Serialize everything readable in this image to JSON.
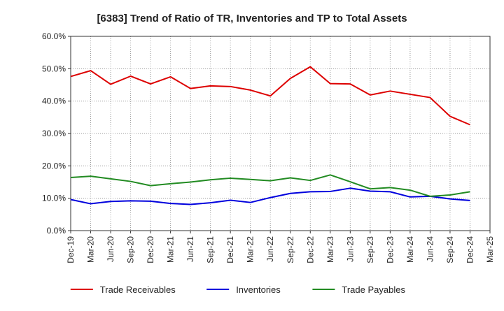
{
  "chart_data": {
    "type": "line",
    "title": "[6383]  Trend of Ratio of TR, Inventories and TP to Total Assets",
    "xlabel": "",
    "ylabel": "",
    "ylim": [
      0,
      0.6
    ],
    "y_ticks": [
      0,
      0.1,
      0.2,
      0.3,
      0.4,
      0.5,
      0.6
    ],
    "y_tick_labels": [
      "0.0%",
      "10.0%",
      "20.0%",
      "30.0%",
      "40.0%",
      "50.0%",
      "60.0%"
    ],
    "x_tick_labels": [
      "Dec-19",
      "Mar-20",
      "Jun-20",
      "Sep-20",
      "Dec-20",
      "Mar-21",
      "Jun-21",
      "Sep-21",
      "Dec-21",
      "Mar-22",
      "Jun-22",
      "Sep-22",
      "Dec-22",
      "Mar-23",
      "Jun-23",
      "Sep-23",
      "Dec-23",
      "Mar-24",
      "Jun-24",
      "Sep-24",
      "Dec-24",
      "Mar-25"
    ],
    "categories": [
      "Dec-19",
      "Mar-20",
      "Jun-20",
      "Sep-20",
      "Dec-20",
      "Mar-21",
      "Jun-21",
      "Sep-21",
      "Dec-21",
      "Mar-22",
      "Jun-22",
      "Sep-22",
      "Dec-22",
      "Mar-23",
      "Jun-23",
      "Sep-23",
      "Dec-23",
      "Mar-24",
      "Jun-24",
      "Sep-24",
      "Dec-24"
    ],
    "grid": true,
    "legend_position": "bottom",
    "series": [
      {
        "name": "Trade Receivables",
        "color": "#dd0000",
        "values": [
          0.476,
          0.494,
          0.452,
          0.477,
          0.453,
          0.475,
          0.439,
          0.447,
          0.445,
          0.434,
          0.416,
          0.47,
          0.506,
          0.454,
          0.453,
          0.419,
          0.431,
          0.421,
          0.411,
          0.353,
          0.327
        ]
      },
      {
        "name": "Inventories",
        "color": "#0000dd",
        "values": [
          0.096,
          0.083,
          0.09,
          0.092,
          0.091,
          0.084,
          0.081,
          0.086,
          0.094,
          0.087,
          0.102,
          0.115,
          0.12,
          0.121,
          0.131,
          0.122,
          0.12,
          0.104,
          0.106,
          0.098,
          0.093
        ]
      },
      {
        "name": "Trade Payables",
        "color": "#228b22",
        "values": [
          0.164,
          0.168,
          0.16,
          0.152,
          0.139,
          0.145,
          0.15,
          0.157,
          0.162,
          0.158,
          0.154,
          0.163,
          0.155,
          0.172,
          0.151,
          0.129,
          0.133,
          0.125,
          0.106,
          0.11,
          0.12
        ]
      }
    ]
  }
}
